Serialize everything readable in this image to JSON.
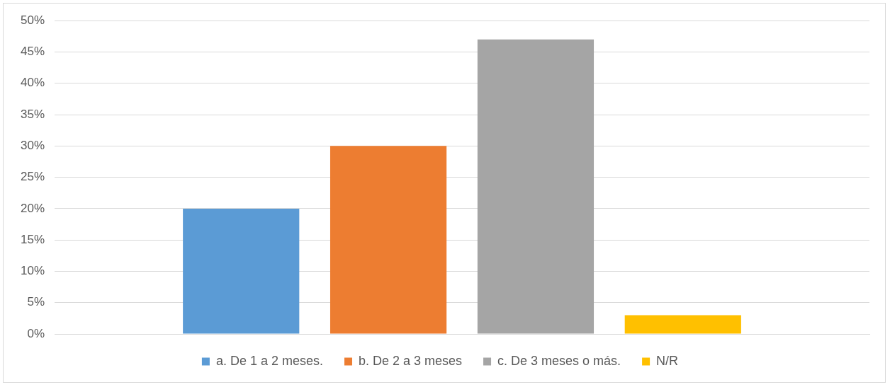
{
  "chart_data": {
    "type": "bar",
    "categories": [
      null
    ],
    "series": [
      {
        "name": "a. De 1 a 2 meses.",
        "color": "#5b9bd5",
        "values": [
          20
        ]
      },
      {
        "name": "b. De 2 a 3 meses",
        "color": "#ed7d31",
        "values": [
          30
        ]
      },
      {
        "name": "c. De 3 meses o más.",
        "color": "#a5a5a5",
        "values": [
          47
        ]
      },
      {
        "name": "N/R",
        "color": "#ffc000",
        "values": [
          3
        ]
      }
    ],
    "ylim": [
      0,
      50
    ],
    "yticks": [
      {
        "value": 0,
        "label": "0%"
      },
      {
        "value": 5,
        "label": "5%"
      },
      {
        "value": 10,
        "label": "10%"
      },
      {
        "value": 15,
        "label": "15%"
      },
      {
        "value": 20,
        "label": "20%"
      },
      {
        "value": 25,
        "label": "25%"
      },
      {
        "value": 30,
        "label": "30%"
      },
      {
        "value": 35,
        "label": "35%"
      },
      {
        "value": 40,
        "label": "40%"
      },
      {
        "value": 45,
        "label": "45%"
      },
      {
        "value": 50,
        "label": "50%"
      }
    ],
    "grid": "y",
    "legend": "bottom"
  }
}
